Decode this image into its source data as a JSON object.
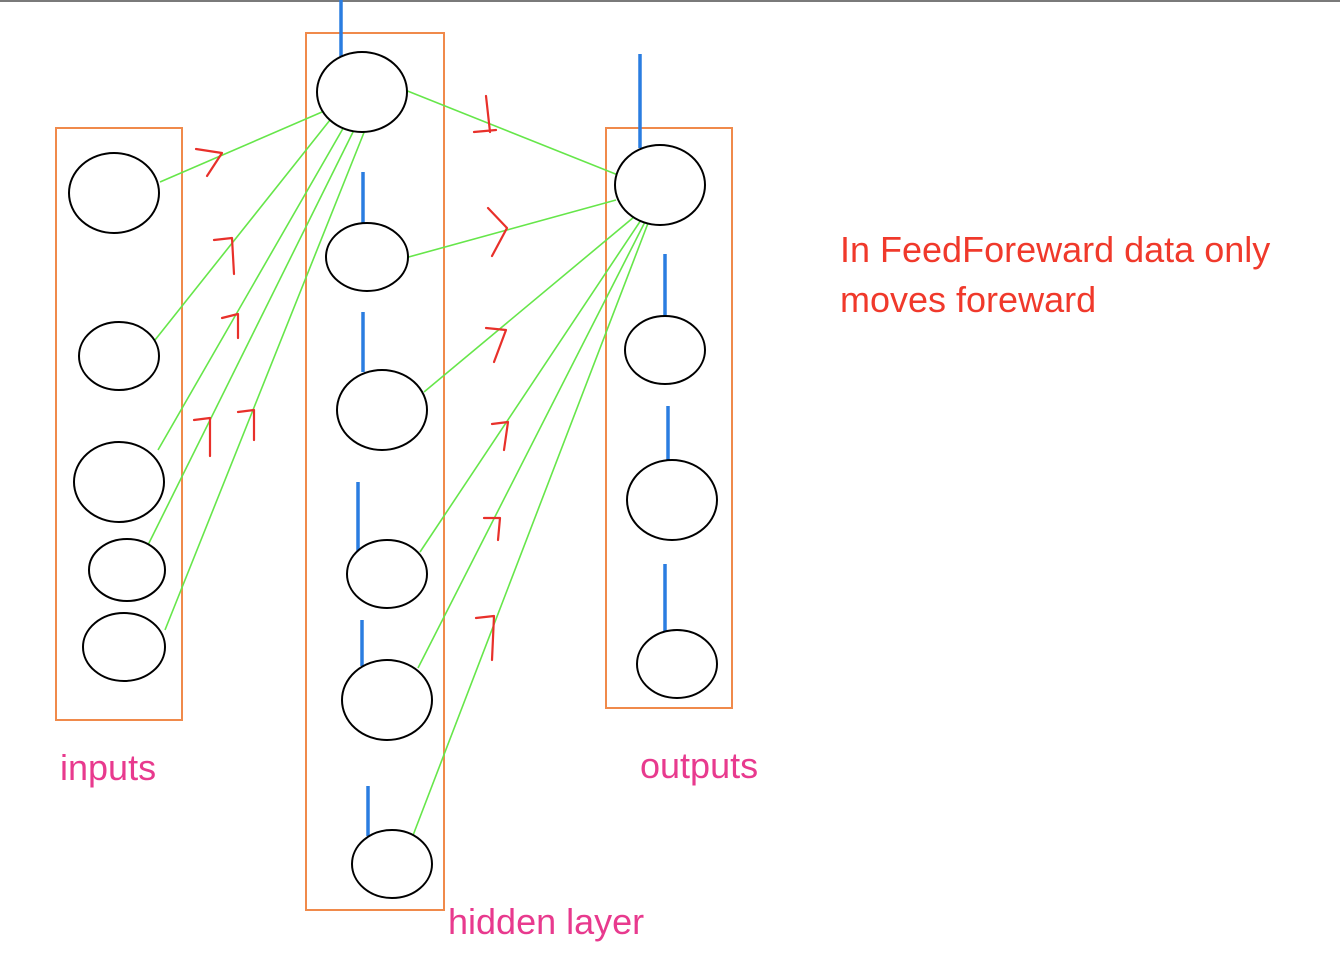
{
  "labels": {
    "inputs": "inputs",
    "hidden": "hidden layer",
    "outputs": "outputs"
  },
  "note": {
    "line1": "In FeedForeward data only",
    "line2": "moves foreward"
  },
  "layers": [
    {
      "key": "inputs",
      "nodes": 5
    },
    {
      "key": "hidden",
      "nodes": 6
    },
    {
      "key": "outputs",
      "nodes": 4
    }
  ],
  "colors": {
    "layer_box": "#f08a4b",
    "node_stroke": "#000000",
    "connection": "#66e64a",
    "bias": "#2a7de1",
    "arrow_mark": "#e8302a",
    "layer_label": "#e83a8e",
    "note_text": "#f0392b"
  }
}
